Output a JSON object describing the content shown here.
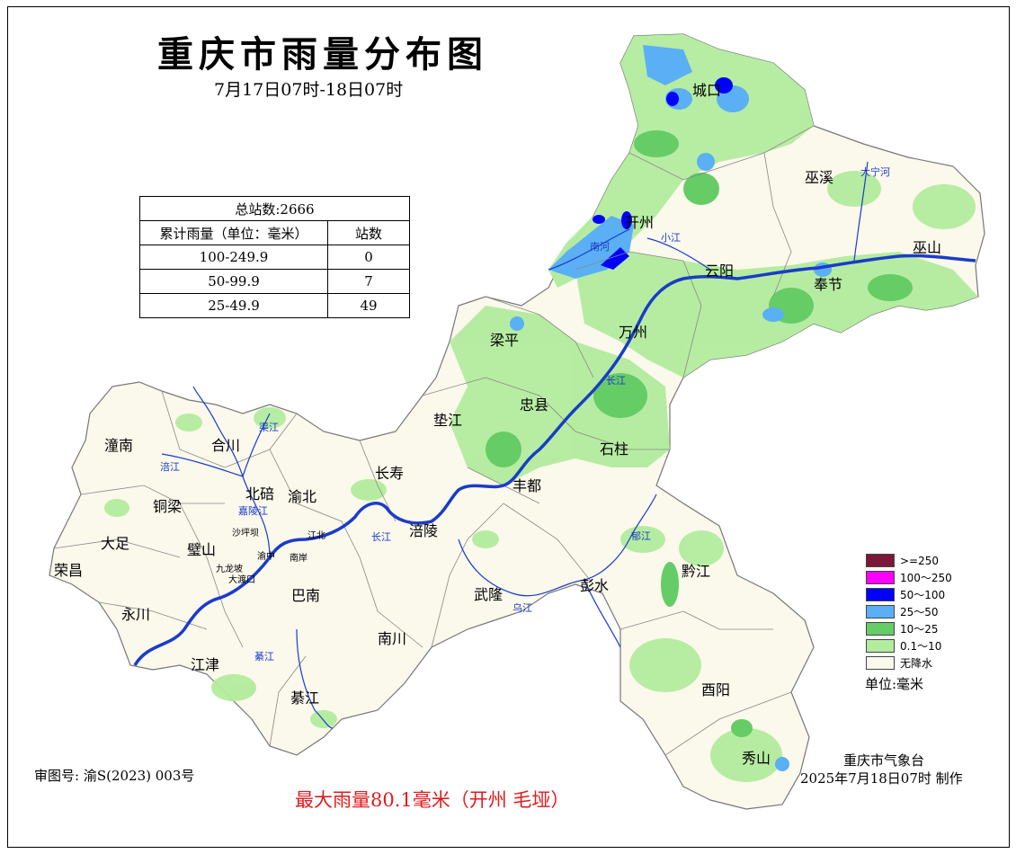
{
  "title": "重庆市雨量分布图",
  "subtitle": "7月17日07时-18日07时",
  "stats": {
    "total": "总站数:2666",
    "header_range": "累计雨量（单位：毫米）",
    "header_count": "站数",
    "rows": [
      {
        "range": "100-249.9",
        "count": "0"
      },
      {
        "range": "50-99.9",
        "count": "7"
      },
      {
        "range": "25-49.9",
        "count": "49"
      }
    ]
  },
  "legend": {
    "items": [
      {
        "label": ">=250",
        "color": "#7b1839"
      },
      {
        "label": "100～250",
        "color": "#ff00ff"
      },
      {
        "label": "50～100",
        "color": "#0000ff"
      },
      {
        "label": "25～50",
        "color": "#5aaff5"
      },
      {
        "label": "10～25",
        "color": "#66cc66"
      },
      {
        "label": "0.1～10",
        "color": "#b3ec9e"
      },
      {
        "label": "无降水",
        "color": "#fbf8ec"
      }
    ],
    "unit": "单位:毫米"
  },
  "districts": {
    "chengkou": "城口",
    "wuxi": "巫溪",
    "kaizhou": "开州",
    "wushan": "巫山",
    "yunyang": "云阳",
    "fengjie": "奉节",
    "liangping": "梁平",
    "wanzhou": "万州",
    "zhongxian": "忠县",
    "dianjiang": "垫江",
    "shizhu": "石柱",
    "tongnan": "潼南",
    "hechuan": "合川",
    "beibei": "北碚",
    "yubei": "渝北",
    "changshou": "长寿",
    "fengdu": "丰都",
    "tongliang": "铜梁",
    "dazu": "大足",
    "bishan": "璧山",
    "fuling": "涪陵",
    "rongchang": "荣昌",
    "yongchuan": "永川",
    "banan": "巴南",
    "wulong": "武隆",
    "pengshui": "彭水",
    "qianjiang": "黔江",
    "jiangjin": "江津",
    "nanchuan": "南川",
    "qijiang": "綦江",
    "youyang": "酉阳",
    "xiushan": "秀山",
    "shapingba": "沙坪坝",
    "jiulongpo": "九龙坡",
    "dadukou": "大渡口",
    "jiangbei": "江北",
    "yuzhong": "渝中",
    "nanan": "南岸"
  },
  "rivers": {
    "daning": "大宁河",
    "nanhe": "南河",
    "xiaojiang": "小江",
    "changjiang1": "长江",
    "changjiang2": "长江",
    "qujiang": "渠江",
    "fujiang": "涪江",
    "jialing": "嘉陵江",
    "wujiang": "乌江",
    "yujiang": "郁江",
    "qijiang_river": "綦江"
  },
  "approval": "审图号: 渝S(2023) 003号",
  "max_rain": "最大雨量80.1毫米（开州 毛垭）",
  "maker": "重庆市气象台",
  "made_time": "2025年7月18日07时 制作"
}
